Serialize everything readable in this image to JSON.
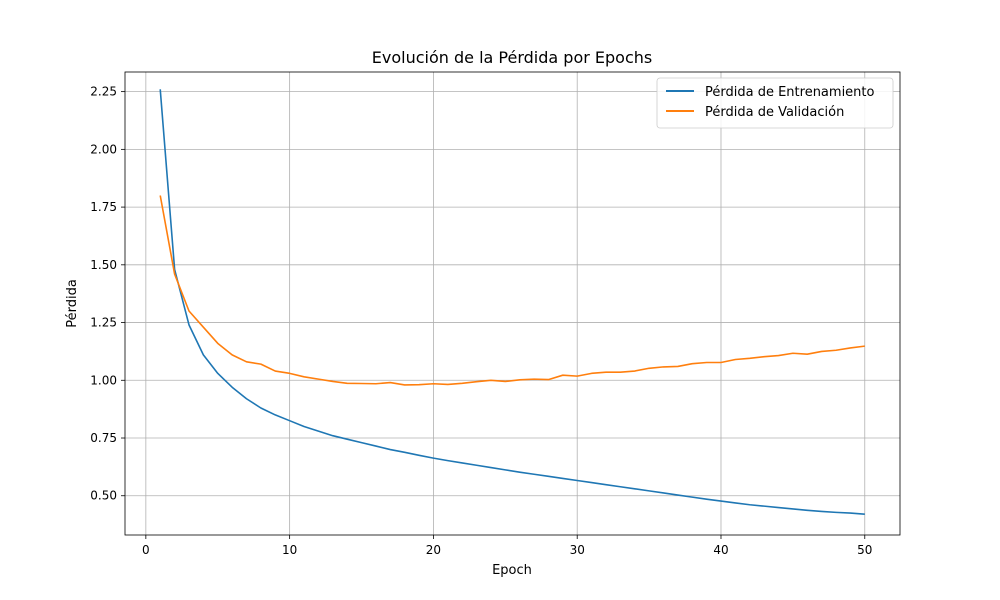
{
  "chart_data": {
    "type": "line",
    "title": "Evolución de la Pérdida por Epochs",
    "xlabel": "Epoch",
    "ylabel": "Pérdida",
    "xlim": [
      -1.45,
      52.45
    ],
    "ylim": [
      0.33,
      2.335
    ],
    "xticks": [
      0,
      10,
      20,
      30,
      40,
      50
    ],
    "xtick_labels": [
      "0",
      "10",
      "20",
      "30",
      "40",
      "50"
    ],
    "yticks": [
      0.5,
      0.75,
      1.0,
      1.25,
      1.5,
      1.75,
      2.0,
      2.25
    ],
    "ytick_labels": [
      "0.50",
      "0.75",
      "1.00",
      "1.25",
      "1.50",
      "1.75",
      "2.00",
      "2.25"
    ],
    "grid": true,
    "legend_position": "top-right",
    "x": [
      1,
      2,
      3,
      4,
      5,
      6,
      7,
      8,
      9,
      10,
      11,
      12,
      13,
      14,
      15,
      16,
      17,
      18,
      19,
      20,
      21,
      22,
      23,
      24,
      25,
      26,
      27,
      28,
      29,
      30,
      31,
      32,
      33,
      34,
      35,
      36,
      37,
      38,
      39,
      40,
      41,
      42,
      43,
      44,
      45,
      46,
      47,
      48,
      49,
      50
    ],
    "series": [
      {
        "name": "Pérdida de Entrenamiento",
        "color": "#1f77b4",
        "values": [
          2.26,
          1.48,
          1.24,
          1.11,
          1.03,
          0.97,
          0.92,
          0.88,
          0.85,
          0.825,
          0.8,
          0.78,
          0.76,
          0.745,
          0.73,
          0.715,
          0.7,
          0.688,
          0.675,
          0.663,
          0.652,
          0.642,
          0.632,
          0.622,
          0.612,
          0.602,
          0.593,
          0.584,
          0.575,
          0.566,
          0.557,
          0.548,
          0.539,
          0.53,
          0.521,
          0.512,
          0.503,
          0.494,
          0.485,
          0.477,
          0.469,
          0.461,
          0.455,
          0.449,
          0.443,
          0.437,
          0.432,
          0.428,
          0.425,
          0.42
        ]
      },
      {
        "name": "Pérdida de Validación",
        "color": "#ff7f0e",
        "values": [
          1.8,
          1.46,
          1.3,
          1.23,
          1.16,
          1.11,
          1.08,
          1.07,
          1.04,
          1.03,
          1.015,
          1.005,
          0.995,
          0.987,
          0.986,
          0.985,
          0.99,
          0.98,
          0.981,
          0.985,
          0.982,
          0.987,
          0.994,
          1.0,
          0.995,
          1.002,
          1.005,
          1.003,
          1.022,
          1.018,
          1.03,
          1.035,
          1.035,
          1.04,
          1.052,
          1.058,
          1.06,
          1.072,
          1.077,
          1.077,
          1.09,
          1.095,
          1.102,
          1.107,
          1.117,
          1.113,
          1.125,
          1.13,
          1.14,
          1.148
        ]
      }
    ]
  }
}
